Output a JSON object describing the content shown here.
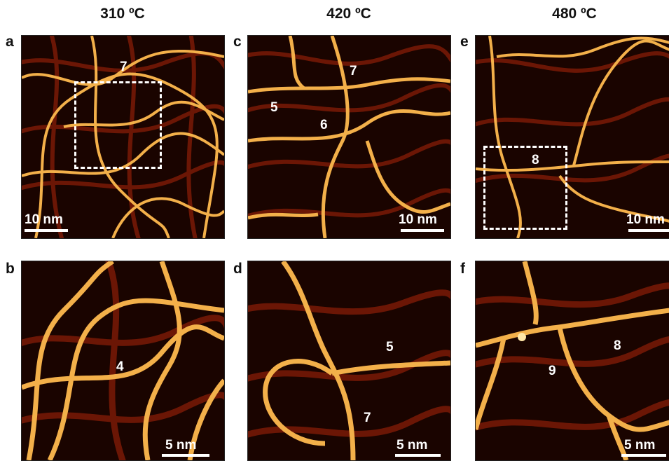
{
  "columns": [
    {
      "title": "310 ºC"
    },
    {
      "title": "420 ºC"
    },
    {
      "title": "480 ºC"
    }
  ],
  "panels": {
    "a": {
      "letter": "a",
      "labels": [
        "7"
      ],
      "scalebar": "10 nm"
    },
    "b": {
      "letter": "b",
      "labels": [
        "4"
      ],
      "scalebar": "5 nm"
    },
    "c": {
      "letter": "c",
      "labels": [
        "7",
        "5",
        "6"
      ],
      "scalebar": "10 nm"
    },
    "d": {
      "letter": "d",
      "labels": [
        "5",
        "7"
      ],
      "scalebar": "5 nm"
    },
    "e": {
      "letter": "e",
      "labels": [
        "8"
      ],
      "scalebar": "10 nm"
    },
    "f": {
      "letter": "f",
      "labels": [
        "8",
        "9"
      ],
      "scalebar": "5 nm"
    }
  },
  "colors": {
    "background": "#1a0400",
    "stripe": "#7a1a06",
    "chain": "#f3b04a",
    "chain_highlight": "#ffe6a6"
  }
}
